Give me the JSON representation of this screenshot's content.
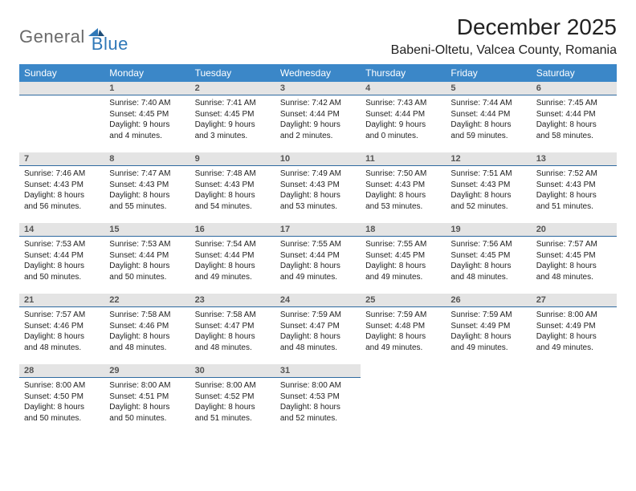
{
  "logo": {
    "general": "General",
    "blue": "Blue"
  },
  "title": "December 2025",
  "location": "Babeni-Oltetu, Valcea County, Romania",
  "colors": {
    "header_bg": "#3b87c8",
    "header_fg": "#ffffff",
    "daybar_bg": "#e4e4e4",
    "daybar_border": "#2f6aa0",
    "logo_gray": "#6a6a6a",
    "logo_blue": "#2f78b8"
  },
  "weekdays": [
    "Sunday",
    "Monday",
    "Tuesday",
    "Wednesday",
    "Thursday",
    "Friday",
    "Saturday"
  ],
  "leading_blanks": 1,
  "days": [
    {
      "n": 1,
      "sunrise": "7:40 AM",
      "sunset": "4:45 PM",
      "daylight": "9 hours and 4 minutes."
    },
    {
      "n": 2,
      "sunrise": "7:41 AM",
      "sunset": "4:45 PM",
      "daylight": "9 hours and 3 minutes."
    },
    {
      "n": 3,
      "sunrise": "7:42 AM",
      "sunset": "4:44 PM",
      "daylight": "9 hours and 2 minutes."
    },
    {
      "n": 4,
      "sunrise": "7:43 AM",
      "sunset": "4:44 PM",
      "daylight": "9 hours and 0 minutes."
    },
    {
      "n": 5,
      "sunrise": "7:44 AM",
      "sunset": "4:44 PM",
      "daylight": "8 hours and 59 minutes."
    },
    {
      "n": 6,
      "sunrise": "7:45 AM",
      "sunset": "4:44 PM",
      "daylight": "8 hours and 58 minutes."
    },
    {
      "n": 7,
      "sunrise": "7:46 AM",
      "sunset": "4:43 PM",
      "daylight": "8 hours and 56 minutes."
    },
    {
      "n": 8,
      "sunrise": "7:47 AM",
      "sunset": "4:43 PM",
      "daylight": "8 hours and 55 minutes."
    },
    {
      "n": 9,
      "sunrise": "7:48 AM",
      "sunset": "4:43 PM",
      "daylight": "8 hours and 54 minutes."
    },
    {
      "n": 10,
      "sunrise": "7:49 AM",
      "sunset": "4:43 PM",
      "daylight": "8 hours and 53 minutes."
    },
    {
      "n": 11,
      "sunrise": "7:50 AM",
      "sunset": "4:43 PM",
      "daylight": "8 hours and 53 minutes."
    },
    {
      "n": 12,
      "sunrise": "7:51 AM",
      "sunset": "4:43 PM",
      "daylight": "8 hours and 52 minutes."
    },
    {
      "n": 13,
      "sunrise": "7:52 AM",
      "sunset": "4:43 PM",
      "daylight": "8 hours and 51 minutes."
    },
    {
      "n": 14,
      "sunrise": "7:53 AM",
      "sunset": "4:44 PM",
      "daylight": "8 hours and 50 minutes."
    },
    {
      "n": 15,
      "sunrise": "7:53 AM",
      "sunset": "4:44 PM",
      "daylight": "8 hours and 50 minutes."
    },
    {
      "n": 16,
      "sunrise": "7:54 AM",
      "sunset": "4:44 PM",
      "daylight": "8 hours and 49 minutes."
    },
    {
      "n": 17,
      "sunrise": "7:55 AM",
      "sunset": "4:44 PM",
      "daylight": "8 hours and 49 minutes."
    },
    {
      "n": 18,
      "sunrise": "7:55 AM",
      "sunset": "4:45 PM",
      "daylight": "8 hours and 49 minutes."
    },
    {
      "n": 19,
      "sunrise": "7:56 AM",
      "sunset": "4:45 PM",
      "daylight": "8 hours and 48 minutes."
    },
    {
      "n": 20,
      "sunrise": "7:57 AM",
      "sunset": "4:45 PM",
      "daylight": "8 hours and 48 minutes."
    },
    {
      "n": 21,
      "sunrise": "7:57 AM",
      "sunset": "4:46 PM",
      "daylight": "8 hours and 48 minutes."
    },
    {
      "n": 22,
      "sunrise": "7:58 AM",
      "sunset": "4:46 PM",
      "daylight": "8 hours and 48 minutes."
    },
    {
      "n": 23,
      "sunrise": "7:58 AM",
      "sunset": "4:47 PM",
      "daylight": "8 hours and 48 minutes."
    },
    {
      "n": 24,
      "sunrise": "7:59 AM",
      "sunset": "4:47 PM",
      "daylight": "8 hours and 48 minutes."
    },
    {
      "n": 25,
      "sunrise": "7:59 AM",
      "sunset": "4:48 PM",
      "daylight": "8 hours and 49 minutes."
    },
    {
      "n": 26,
      "sunrise": "7:59 AM",
      "sunset": "4:49 PM",
      "daylight": "8 hours and 49 minutes."
    },
    {
      "n": 27,
      "sunrise": "8:00 AM",
      "sunset": "4:49 PM",
      "daylight": "8 hours and 49 minutes."
    },
    {
      "n": 28,
      "sunrise": "8:00 AM",
      "sunset": "4:50 PM",
      "daylight": "8 hours and 50 minutes."
    },
    {
      "n": 29,
      "sunrise": "8:00 AM",
      "sunset": "4:51 PM",
      "daylight": "8 hours and 50 minutes."
    },
    {
      "n": 30,
      "sunrise": "8:00 AM",
      "sunset": "4:52 PM",
      "daylight": "8 hours and 51 minutes."
    },
    {
      "n": 31,
      "sunrise": "8:00 AM",
      "sunset": "4:53 PM",
      "daylight": "8 hours and 52 minutes."
    }
  ]
}
